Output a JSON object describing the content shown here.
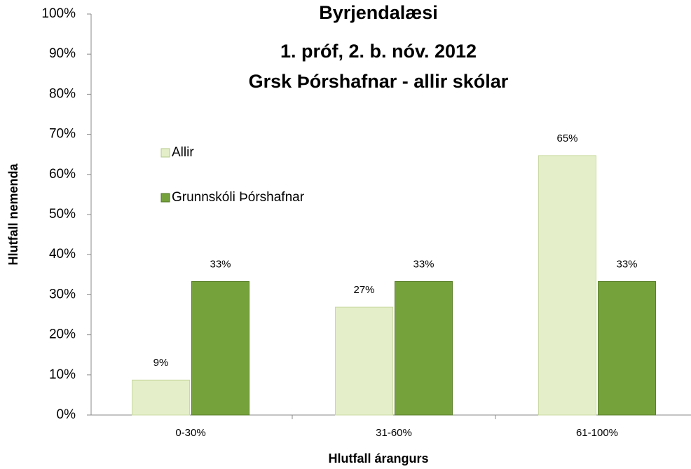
{
  "chart_data": {
    "type": "bar",
    "title": [
      "Byrjendalæsi",
      "1. próf, 2. b. nóv. 2012",
      "Grsk Þórshafnar - allir skólar"
    ],
    "x_label": "Hlutfall árangurs",
    "y_label": "Hlutfall nemenda",
    "categories": [
      "0-30%",
      "31-60%",
      "61-100%"
    ],
    "series": [
      {
        "name": "Allir",
        "color": "#e4efc9",
        "values": [
          8.7,
          26.9,
          64.7
        ],
        "value_labels": [
          "9%",
          "27%",
          "65%"
        ]
      },
      {
        "name": "Grunnskóli Þórshafnar",
        "color": "#76a23c",
        "values": [
          33.3,
          33.3,
          33.3
        ],
        "value_labels": [
          "33%",
          "33%",
          "33%"
        ]
      }
    ],
    "ylim": [
      0,
      100
    ],
    "yticks": [
      {
        "value": 0,
        "label": "0%"
      },
      {
        "value": 10,
        "label": "10%"
      },
      {
        "value": 20,
        "label": "20%"
      },
      {
        "value": 30,
        "label": "30%"
      },
      {
        "value": 40,
        "label": "40%"
      },
      {
        "value": 50,
        "label": "50%"
      },
      {
        "value": 60,
        "label": "60%"
      },
      {
        "value": 70,
        "label": "70%"
      },
      {
        "value": 80,
        "label": "80%"
      },
      {
        "value": 90,
        "label": "90%"
      },
      {
        "value": 100,
        "label": "100%"
      }
    ],
    "grid": false,
    "legend": "upper left"
  }
}
